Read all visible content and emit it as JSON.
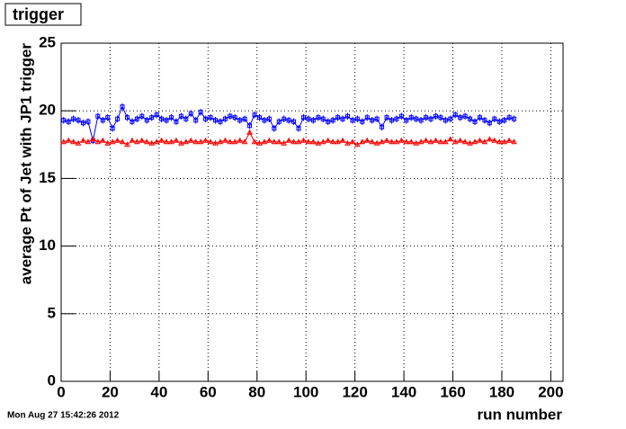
{
  "chart_data": {
    "type": "line",
    "title": "trigger",
    "timestamp": "Mon Aug 27 15:42:26 2012",
    "xlabel": "run number",
    "ylabel": "average Pt of Jet with JP1 trigger",
    "x": [
      1,
      3,
      5,
      7,
      9,
      11,
      13,
      15,
      17,
      19,
      21,
      23,
      25,
      27,
      29,
      31,
      33,
      35,
      37,
      39,
      41,
      43,
      45,
      47,
      49,
      51,
      53,
      55,
      57,
      59,
      61,
      63,
      65,
      67,
      69,
      71,
      73,
      75,
      77,
      79,
      81,
      83,
      85,
      87,
      89,
      91,
      93,
      95,
      97,
      99,
      101,
      103,
      105,
      107,
      109,
      111,
      113,
      115,
      117,
      119,
      121,
      123,
      125,
      127,
      129,
      131,
      133,
      135,
      137,
      139,
      141,
      143,
      145,
      147,
      149,
      151,
      153,
      155,
      157,
      159,
      161,
      163,
      165,
      167,
      169,
      171,
      173,
      175,
      177,
      179,
      181,
      183,
      185
    ],
    "series": [
      {
        "color": "#0000ff",
        "marker": "square",
        "error": 0.25,
        "values": [
          19.3,
          19.2,
          19.4,
          19.3,
          19.1,
          19.2,
          17.8,
          19.6,
          19.3,
          19.5,
          18.7,
          19.4,
          20.3,
          19.5,
          19.2,
          19.4,
          19.6,
          19.3,
          19.5,
          19.7,
          19.4,
          19.3,
          19.5,
          19.2,
          19.6,
          19.4,
          19.8,
          19.3,
          19.9,
          19.4,
          19.5,
          19.3,
          19.2,
          19.4,
          19.6,
          19.5,
          19.3,
          19.4,
          18.9,
          19.7,
          19.5,
          19.3,
          19.4,
          18.7,
          19.2,
          19.4,
          19.3,
          19.2,
          18.7,
          19.5,
          19.4,
          19.3,
          19.5,
          19.4,
          19.2,
          19.3,
          19.5,
          19.4,
          19.6,
          19.3,
          19.4,
          19.2,
          19.5,
          19.3,
          19.4,
          18.8,
          19.5,
          19.3,
          19.4,
          19.6,
          19.3,
          19.5,
          19.4,
          19.3,
          19.5,
          19.4,
          19.6,
          19.5,
          19.3,
          19.4,
          19.7,
          19.5,
          19.6,
          19.4,
          19.2,
          19.5,
          19.3,
          19.1,
          19.4,
          19.2,
          19.3,
          19.5,
          19.4
        ]
      },
      {
        "color": "#ff0000",
        "marker": "triangle",
        "error": 0.15,
        "values": [
          17.7,
          17.8,
          17.7,
          17.6,
          17.8,
          17.7,
          17.9,
          17.7,
          17.8,
          17.6,
          17.7,
          17.8,
          17.7,
          17.5,
          17.8,
          17.7,
          17.8,
          17.7,
          17.6,
          17.7,
          17.8,
          17.7,
          17.7,
          17.8,
          17.6,
          17.7,
          17.8,
          17.7,
          17.7,
          17.8,
          17.7,
          17.6,
          17.7,
          17.8,
          17.7,
          17.7,
          17.8,
          17.7,
          18.4,
          17.7,
          17.6,
          17.7,
          17.8,
          17.7,
          17.7,
          17.6,
          17.8,
          17.7,
          17.7,
          17.8,
          17.7,
          17.7,
          17.6,
          17.7,
          17.8,
          17.7,
          17.7,
          17.8,
          17.6,
          17.7,
          17.5,
          17.7,
          17.8,
          17.7,
          17.6,
          17.7,
          17.8,
          17.7,
          17.7,
          17.8,
          17.7,
          17.7,
          17.6,
          17.7,
          17.8,
          17.7,
          17.8,
          17.7,
          17.7,
          17.9,
          17.7,
          17.8,
          17.7,
          17.6,
          17.7,
          17.8,
          17.7,
          17.9,
          17.8,
          17.7,
          17.7,
          17.8,
          17.7
        ]
      }
    ],
    "xlim": [
      0,
      205
    ],
    "xticks": [
      0,
      20,
      40,
      60,
      80,
      100,
      120,
      140,
      160,
      180,
      200
    ],
    "ylim": [
      0,
      25
    ],
    "yticks": [
      0,
      5,
      10,
      15,
      20,
      25
    ],
    "grid": true
  }
}
